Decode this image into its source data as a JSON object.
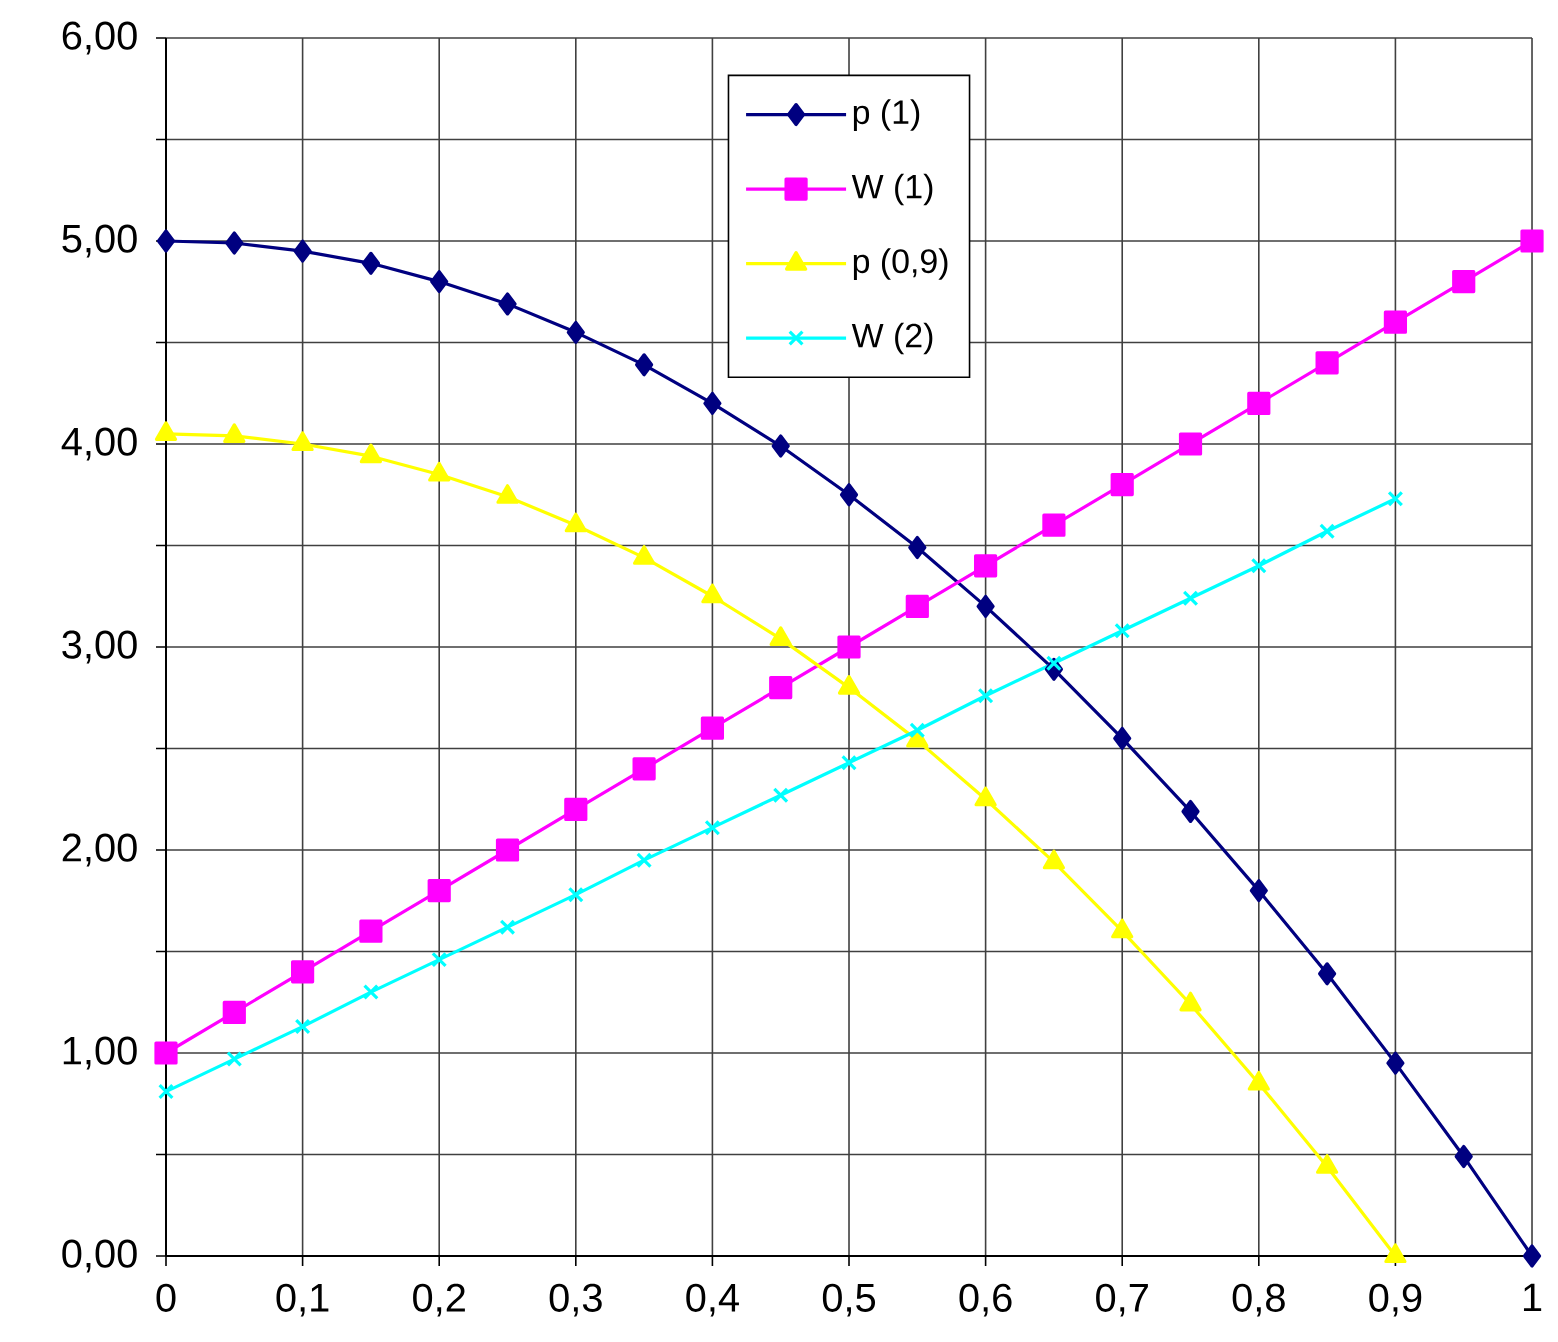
{
  "chart_data": {
    "type": "line",
    "x": [
      0,
      0.05,
      0.1,
      0.15,
      0.2,
      0.25,
      0.3,
      0.35,
      0.4,
      0.45,
      0.5,
      0.55,
      0.6,
      0.65,
      0.7,
      0.75,
      0.8,
      0.85,
      0.9,
      0.95,
      1
    ],
    "series": [
      {
        "name": "p (1)",
        "color": "#000080",
        "marker": "diamond",
        "values": [
          5.0,
          4.99,
          4.95,
          4.89,
          4.8,
          4.69,
          4.55,
          4.39,
          4.2,
          3.99,
          3.75,
          3.49,
          3.2,
          2.89,
          2.55,
          2.19,
          1.8,
          1.39,
          0.95,
          0.49,
          0.0
        ]
      },
      {
        "name": "W (1)",
        "color": "#ff00ff",
        "marker": "square",
        "values": [
          1.0,
          1.2,
          1.4,
          1.6,
          1.8,
          2.0,
          2.2,
          2.4,
          2.6,
          2.8,
          3.0,
          3.2,
          3.4,
          3.6,
          3.8,
          4.0,
          4.2,
          4.4,
          4.6,
          4.8,
          5.0
        ]
      },
      {
        "name": "p (0,9)",
        "color": "#ffff00",
        "marker": "triangle",
        "x": [
          0,
          0.05,
          0.1,
          0.15,
          0.2,
          0.25,
          0.3,
          0.35,
          0.4,
          0.45,
          0.5,
          0.55,
          0.6,
          0.65,
          0.7,
          0.75,
          0.8,
          0.85,
          0.9
        ],
        "values": [
          4.05,
          4.04,
          4.0,
          3.94,
          3.85,
          3.74,
          3.6,
          3.44,
          3.25,
          3.04,
          2.8,
          2.54,
          2.25,
          1.94,
          1.6,
          1.24,
          0.85,
          0.44,
          0.0
        ]
      },
      {
        "name": "W (2)",
        "color": "#00ffff",
        "marker": "cross",
        "x": [
          0,
          0.05,
          0.1,
          0.15,
          0.2,
          0.25,
          0.3,
          0.35,
          0.4,
          0.45,
          0.5,
          0.55,
          0.6,
          0.65,
          0.7,
          0.75,
          0.8,
          0.85,
          0.9
        ],
        "values": [
          0.81,
          0.97,
          1.13,
          1.3,
          1.46,
          1.62,
          1.78,
          1.95,
          2.11,
          2.27,
          2.43,
          2.59,
          2.76,
          2.92,
          3.08,
          3.24,
          3.4,
          3.57,
          3.73
        ]
      }
    ],
    "xlim": [
      0,
      1
    ],
    "xticks": [
      0,
      {
        "value": 0.1,
        "label": "0,1"
      },
      {
        "value": 0.2,
        "label": "0,2"
      },
      {
        "value": 0.3,
        "label": "0,3"
      },
      {
        "value": 0.4,
        "label": "0,4"
      },
      {
        "value": 0.5,
        "label": "0,5"
      },
      {
        "value": 0.6,
        "label": "0,6"
      },
      {
        "value": 0.7,
        "label": "0,7"
      },
      {
        "value": 0.8,
        "label": "0,8"
      },
      {
        "value": 0.9,
        "label": "0,9"
      },
      1
    ],
    "ylim": [
      0,
      6
    ],
    "yticks": [
      {
        "value": 0,
        "label": "0,00"
      },
      {
        "value": 0.5,
        "label": null
      },
      {
        "value": 1,
        "label": "1,00"
      },
      {
        "value": 1.5,
        "label": null
      },
      {
        "value": 2,
        "label": "2,00"
      },
      {
        "value": 2.5,
        "label": null
      },
      {
        "value": 3,
        "label": "3,00"
      },
      {
        "value": 3.5,
        "label": null
      },
      {
        "value": 4,
        "label": "4,00"
      },
      {
        "value": 4.5,
        "label": null
      },
      {
        "value": 5,
        "label": "5,00"
      },
      {
        "value": 5.5,
        "label": null
      },
      {
        "value": 6,
        "label": "6,00"
      }
    ],
    "grid": true,
    "legend": "top"
  }
}
